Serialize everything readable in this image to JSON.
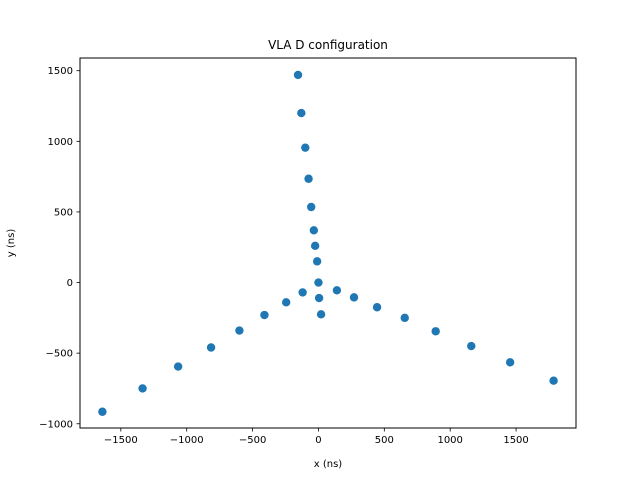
{
  "chart_data": {
    "type": "scatter",
    "title": "VLA D configuration",
    "xlabel": "x (ns)",
    "ylabel": "y (ns)",
    "xlim": [
      -1810,
      1955
    ],
    "ylim": [
      -1030,
      1590
    ],
    "xticks": [
      -1500,
      -1000,
      -500,
      0,
      500,
      1000,
      1500
    ],
    "yticks": [
      -1000,
      -500,
      0,
      500,
      1000,
      1500
    ],
    "grid": false,
    "marker_color": "#1f77b4",
    "series": [
      {
        "points": [
          {
            "x": -1640,
            "y": -915
          },
          {
            "x": -1335,
            "y": -750
          },
          {
            "x": -1065,
            "y": -595
          },
          {
            "x": -815,
            "y": -460
          },
          {
            "x": -600,
            "y": -340
          },
          {
            "x": -410,
            "y": -230
          },
          {
            "x": -245,
            "y": -140
          },
          {
            "x": -120,
            "y": -70
          },
          {
            "x": 0,
            "y": 0
          },
          {
            "x": -155,
            "y": 1470
          },
          {
            "x": -130,
            "y": 1200
          },
          {
            "x": -100,
            "y": 955
          },
          {
            "x": -75,
            "y": 735
          },
          {
            "x": -55,
            "y": 535
          },
          {
            "x": -35,
            "y": 370
          },
          {
            "x": -25,
            "y": 260
          },
          {
            "x": -10,
            "y": 150
          },
          {
            "x": 5,
            "y": -110
          },
          {
            "x": 20,
            "y": -225
          },
          {
            "x": 140,
            "y": -55
          },
          {
            "x": 270,
            "y": -105
          },
          {
            "x": 445,
            "y": -175
          },
          {
            "x": 655,
            "y": -250
          },
          {
            "x": 890,
            "y": -345
          },
          {
            "x": 1160,
            "y": -450
          },
          {
            "x": 1455,
            "y": -565
          },
          {
            "x": 1785,
            "y": -695
          }
        ]
      }
    ]
  }
}
